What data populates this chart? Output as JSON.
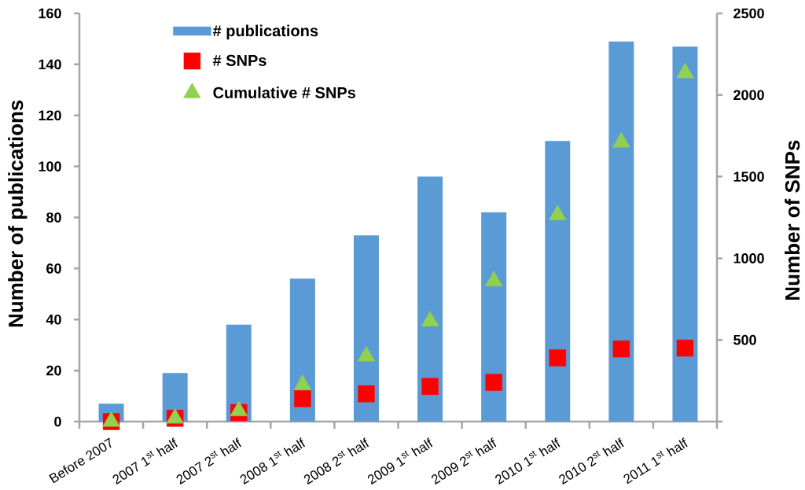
{
  "chart_data": {
    "type": "bar",
    "categories": [
      "Before 2007",
      "2007 1$^{st}$ half",
      "2007 2$^{st}$ half",
      "2008 1$^{st}$ half",
      "2008 2$^{st}$ half",
      "2009 1$^{st}$ half",
      "2009 2$^{st}$ half",
      "2010 1$^{st}$ half",
      "2010 2$^{st}$ half",
      "2011 1$^{st}$ half"
    ],
    "series": [
      {
        "name": "# publications",
        "color": "#5b9bd5",
        "values": [
          7,
          19,
          38,
          56,
          73,
          96,
          82,
          110,
          149,
          147
        ]
      },
      {
        "name": "# SNPs",
        "type": "scatter",
        "axis": "y2",
        "marker": "square",
        "color": "#ff0000",
        "values": [
          0,
          20,
          55,
          140,
          170,
          215,
          240,
          390,
          445,
          450
        ]
      },
      {
        "name": "Cumulative # SNPs",
        "type": "scatter",
        "axis": "y2",
        "marker": "triangle",
        "color": "#92d050",
        "values": [
          0,
          20,
          65,
          225,
          400,
          615,
          860,
          1265,
          1710,
          2135
        ]
      }
    ],
    "ylabel": "Number of publications",
    "y2label": "Number of SNPs",
    "ylim": [
      0,
      160
    ],
    "yticks": [
      0,
      20,
      40,
      60,
      80,
      100,
      120,
      140,
      160
    ],
    "y2lim": [
      0,
      2500
    ],
    "y2ticks": [
      {
        "value": 0,
        "label": null
      },
      500,
      1000,
      1500,
      2000,
      2500
    ],
    "legend": "top left"
  }
}
